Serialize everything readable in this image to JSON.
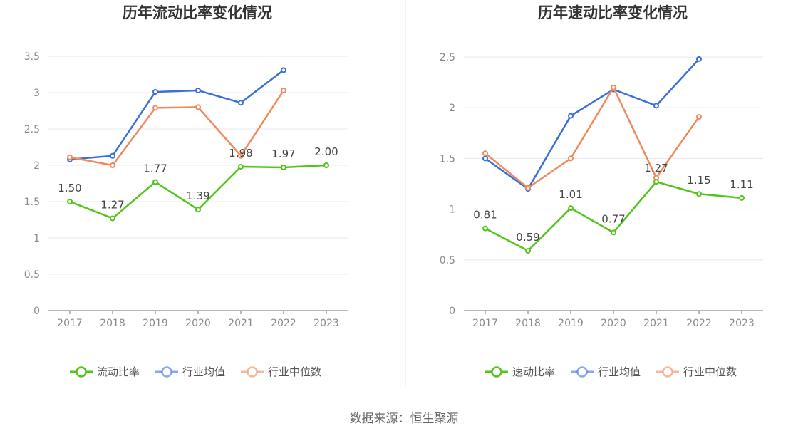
{
  "source_label": "数据来源：恒生聚源",
  "chart_data": [
    {
      "type": "line",
      "title": "历年流动比率变化情况",
      "categories": [
        "2017",
        "2018",
        "2019",
        "2020",
        "2021",
        "2022",
        "2023"
      ],
      "ylim": [
        0,
        3.5
      ],
      "yticks": [
        "0",
        "0.5",
        "1",
        "1.5",
        "2",
        "2.5",
        "3",
        "3.5"
      ],
      "ytick_values": [
        0,
        0.5,
        1,
        1.5,
        2,
        2.5,
        3,
        3.5
      ],
      "xlabel": "",
      "ylabel": "",
      "grid": true,
      "legend_position": "bottom-center",
      "series": [
        {
          "name": "流动比率",
          "color": "#52c41a",
          "values": [
            1.5,
            1.27,
            1.77,
            1.39,
            1.98,
            1.97,
            2.0
          ],
          "labels": [
            "1.50",
            "1.27",
            "1.77",
            "1.39",
            "1.98",
            "1.97",
            "2.00"
          ]
        },
        {
          "name": "行业均值",
          "color": "#3a6fd8",
          "values": [
            2.08,
            2.13,
            3.01,
            3.03,
            2.86,
            3.31,
            null
          ]
        },
        {
          "name": "行业中位数",
          "color": "#f08a5d",
          "values": [
            2.11,
            2.0,
            2.79,
            2.8,
            2.13,
            3.03,
            null
          ]
        }
      ]
    },
    {
      "type": "line",
      "title": "历年速动比率变化情况",
      "categories": [
        "2017",
        "2018",
        "2019",
        "2020",
        "2021",
        "2022",
        "2023"
      ],
      "ylim": [
        0,
        2.5
      ],
      "yticks": [
        "0",
        "0.5",
        "1",
        "1.5",
        "2",
        "2.5"
      ],
      "ytick_values": [
        0,
        0.5,
        1,
        1.5,
        2,
        2.5
      ],
      "xlabel": "",
      "ylabel": "",
      "grid": true,
      "legend_position": "bottom-center",
      "series": [
        {
          "name": "速动比率",
          "color": "#52c41a",
          "values": [
            0.81,
            0.59,
            1.01,
            0.77,
            1.27,
            1.15,
            1.11
          ],
          "labels": [
            "0.81",
            "0.59",
            "1.01",
            "0.77",
            "1.27",
            "1.15",
            "1.11"
          ]
        },
        {
          "name": "行业均值",
          "color": "#3a6fd8",
          "values": [
            1.5,
            1.2,
            1.92,
            2.18,
            2.02,
            2.48,
            null
          ]
        },
        {
          "name": "行业中位数",
          "color": "#f08a5d",
          "values": [
            1.55,
            1.21,
            1.5,
            2.2,
            1.31,
            1.91,
            null
          ]
        }
      ]
    }
  ]
}
